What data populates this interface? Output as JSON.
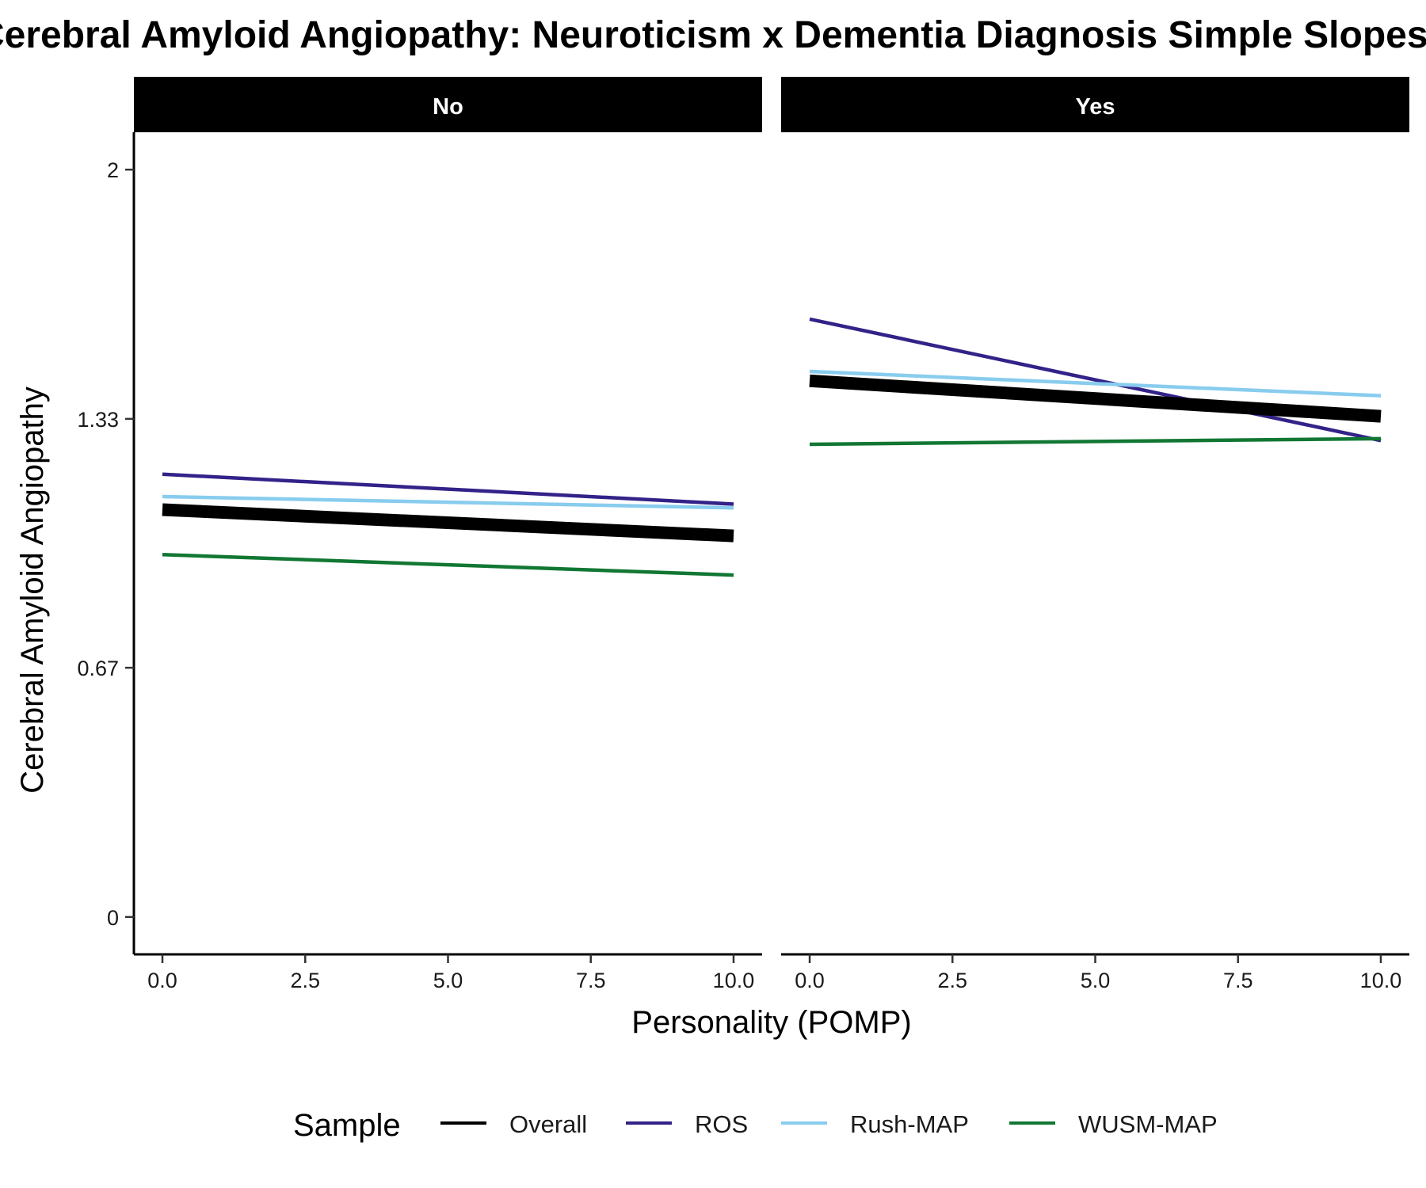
{
  "chart_data": {
    "type": "line",
    "title": "Cerebral Amyloid Angiopathy: Neuroticism x Dementia Diagnosis Simple Slopes",
    "xlabel": "Personality (POMP)",
    "ylabel": "Cerebral Amyloid Angiopathy",
    "xlim": [
      -0.5,
      10.5
    ],
    "ylim": [
      -0.1,
      2.1
    ],
    "x_ticks": [
      0,
      2.5,
      5,
      7.5,
      10
    ],
    "x_tick_labels": [
      "0.0",
      "2.5",
      "5.0",
      "7.5",
      "10.0"
    ],
    "y_ticks": [
      0,
      0.667,
      1.333,
      2
    ],
    "y_tick_labels": [
      "0",
      "0.67",
      "1.33",
      "2"
    ],
    "grid": false,
    "legend": {
      "title": "Sample",
      "position": "bottom"
    },
    "facets": [
      {
        "label": "No",
        "series": [
          {
            "name": "Overall",
            "x": [
              0,
              10
            ],
            "y": [
              1.09,
              1.02
            ]
          },
          {
            "name": "ROS",
            "x": [
              0,
              10
            ],
            "y": [
              1.185,
              1.105
            ]
          },
          {
            "name": "Rush-MAP",
            "x": [
              0,
              10
            ],
            "y": [
              1.125,
              1.095
            ]
          },
          {
            "name": "WUSM-MAP",
            "x": [
              0,
              10
            ],
            "y": [
              0.97,
              0.915
            ]
          }
        ]
      },
      {
        "label": "Yes",
        "series": [
          {
            "name": "Overall",
            "x": [
              0,
              10
            ],
            "y": [
              1.435,
              1.34
            ]
          },
          {
            "name": "ROS",
            "x": [
              0,
              10
            ],
            "y": [
              1.6,
              1.275
            ]
          },
          {
            "name": "Rush-MAP",
            "x": [
              0,
              10
            ],
            "y": [
              1.46,
              1.395
            ]
          },
          {
            "name": "WUSM-MAP",
            "x": [
              0,
              10
            ],
            "y": [
              1.265,
              1.28
            ]
          }
        ]
      }
    ],
    "series_styles": [
      {
        "name": "Overall",
        "color": "#000000",
        "weight": "thick"
      },
      {
        "name": "ROS",
        "color": "#332288",
        "weight": "normal"
      },
      {
        "name": "Rush-MAP",
        "color": "#88CCEE",
        "weight": "normal"
      },
      {
        "name": "WUSM-MAP",
        "color": "#117733",
        "weight": "normal"
      }
    ]
  }
}
